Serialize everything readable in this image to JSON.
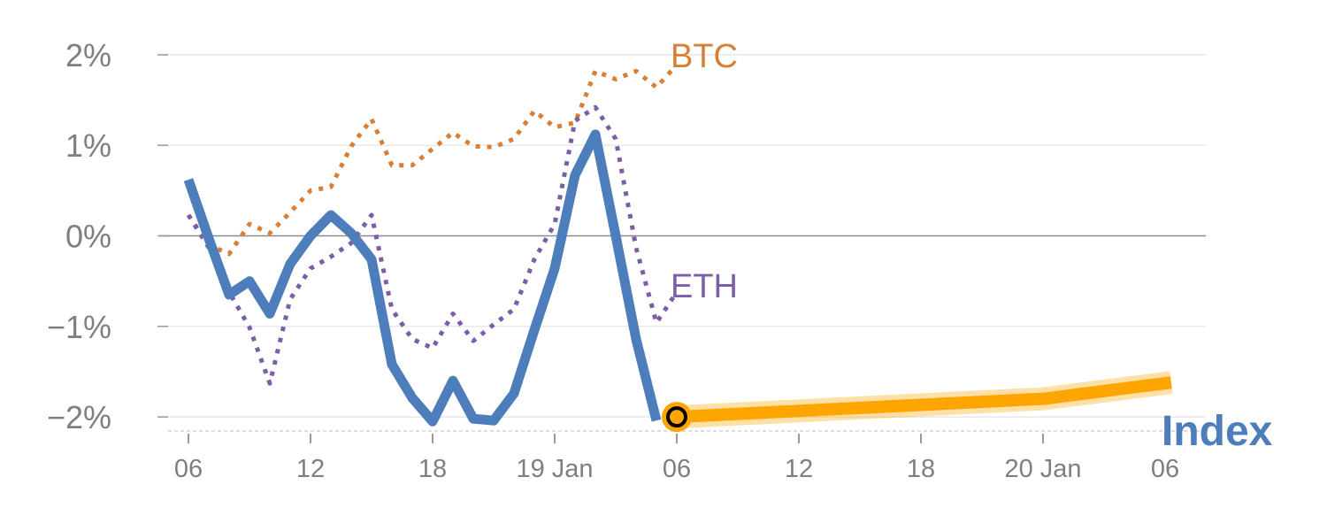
{
  "chart_data": {
    "type": "line",
    "title": "",
    "xlabel": "",
    "ylabel": "",
    "x_unit": "hours from 18 Jan 00:00",
    "xlim": [
      5.5,
      55.5
    ],
    "ylim": [
      -2.15,
      2.05
    ],
    "grid": true,
    "y_ticks": [
      {
        "value": 2,
        "label": "2%"
      },
      {
        "value": 1,
        "label": "1%"
      },
      {
        "value": 0,
        "label": "0%"
      },
      {
        "value": -1,
        "label": "−1%"
      },
      {
        "value": -2,
        "label": "−2%"
      }
    ],
    "x_ticks": [
      {
        "value": 6,
        "label": "06"
      },
      {
        "value": 12,
        "label": "12"
      },
      {
        "value": 18,
        "label": "18"
      },
      {
        "value": 24,
        "label": "19 Jan"
      },
      {
        "value": 30,
        "label": "06"
      },
      {
        "value": 36,
        "label": "12"
      },
      {
        "value": 42,
        "label": "18"
      },
      {
        "value": 48,
        "label": "20 Jan"
      },
      {
        "value": 54,
        "label": "06"
      }
    ],
    "series": [
      {
        "name": "BTC",
        "label": "BTC",
        "color": "#d97f35",
        "style": "dotted",
        "x": [
          6,
          7,
          8,
          9,
          10,
          11,
          12,
          13,
          14,
          15,
          16,
          17,
          18,
          19,
          20,
          21,
          22,
          23,
          24,
          25,
          26,
          27,
          28,
          29,
          30
        ],
        "values": [
          0.23,
          -0.1,
          -0.2,
          0.13,
          0.03,
          0.26,
          0.5,
          0.54,
          0.99,
          1.29,
          0.78,
          0.78,
          0.96,
          1.14,
          0.99,
          0.98,
          1.07,
          1.38,
          1.2,
          1.25,
          1.82,
          1.73,
          1.82,
          1.64,
          1.89
        ]
      },
      {
        "name": "ETH",
        "label": "ETH",
        "color": "#7b5ea7",
        "style": "dotted",
        "x": [
          6,
          7,
          8,
          9,
          10,
          11,
          12,
          13,
          14,
          15,
          16,
          17,
          18,
          19,
          20,
          21,
          22,
          23,
          24,
          25,
          26,
          27,
          28,
          29,
          30
        ],
        "values": [
          0.23,
          -0.13,
          -0.62,
          -1.01,
          -1.63,
          -0.7,
          -0.36,
          -0.23,
          -0.08,
          0.23,
          -0.81,
          -1.14,
          -1.24,
          -0.86,
          -1.16,
          -0.98,
          -0.81,
          -0.26,
          0.13,
          1.27,
          1.42,
          1.07,
          -0.13,
          -0.96,
          -0.62
        ]
      },
      {
        "name": "Index",
        "label": "Index",
        "color": "#4d7ebb",
        "style": "solid",
        "x": [
          6,
          7,
          8,
          9,
          10,
          11,
          12,
          13,
          14,
          15,
          16,
          17,
          18,
          19,
          20,
          21,
          22,
          23,
          24,
          25,
          26,
          27,
          28,
          29
        ],
        "values": [
          0.62,
          -0.03,
          -0.65,
          -0.5,
          -0.86,
          -0.31,
          0,
          0.23,
          0.03,
          -0.26,
          -1.42,
          -1.79,
          -2.05,
          -1.6,
          -2.02,
          -2.04,
          -1.74,
          -1.04,
          -0.36,
          0.67,
          1.12,
          0,
          -1.14,
          -2.04
        ]
      },
      {
        "name": "Index forecast",
        "color": "#ffa500",
        "style": "band",
        "x": [
          30,
          48,
          54.3
        ],
        "values": [
          -2.0,
          -1.8,
          -1.62
        ]
      }
    ],
    "marker": {
      "x": 30,
      "value": -2.0,
      "color": "#ffa500"
    }
  }
}
